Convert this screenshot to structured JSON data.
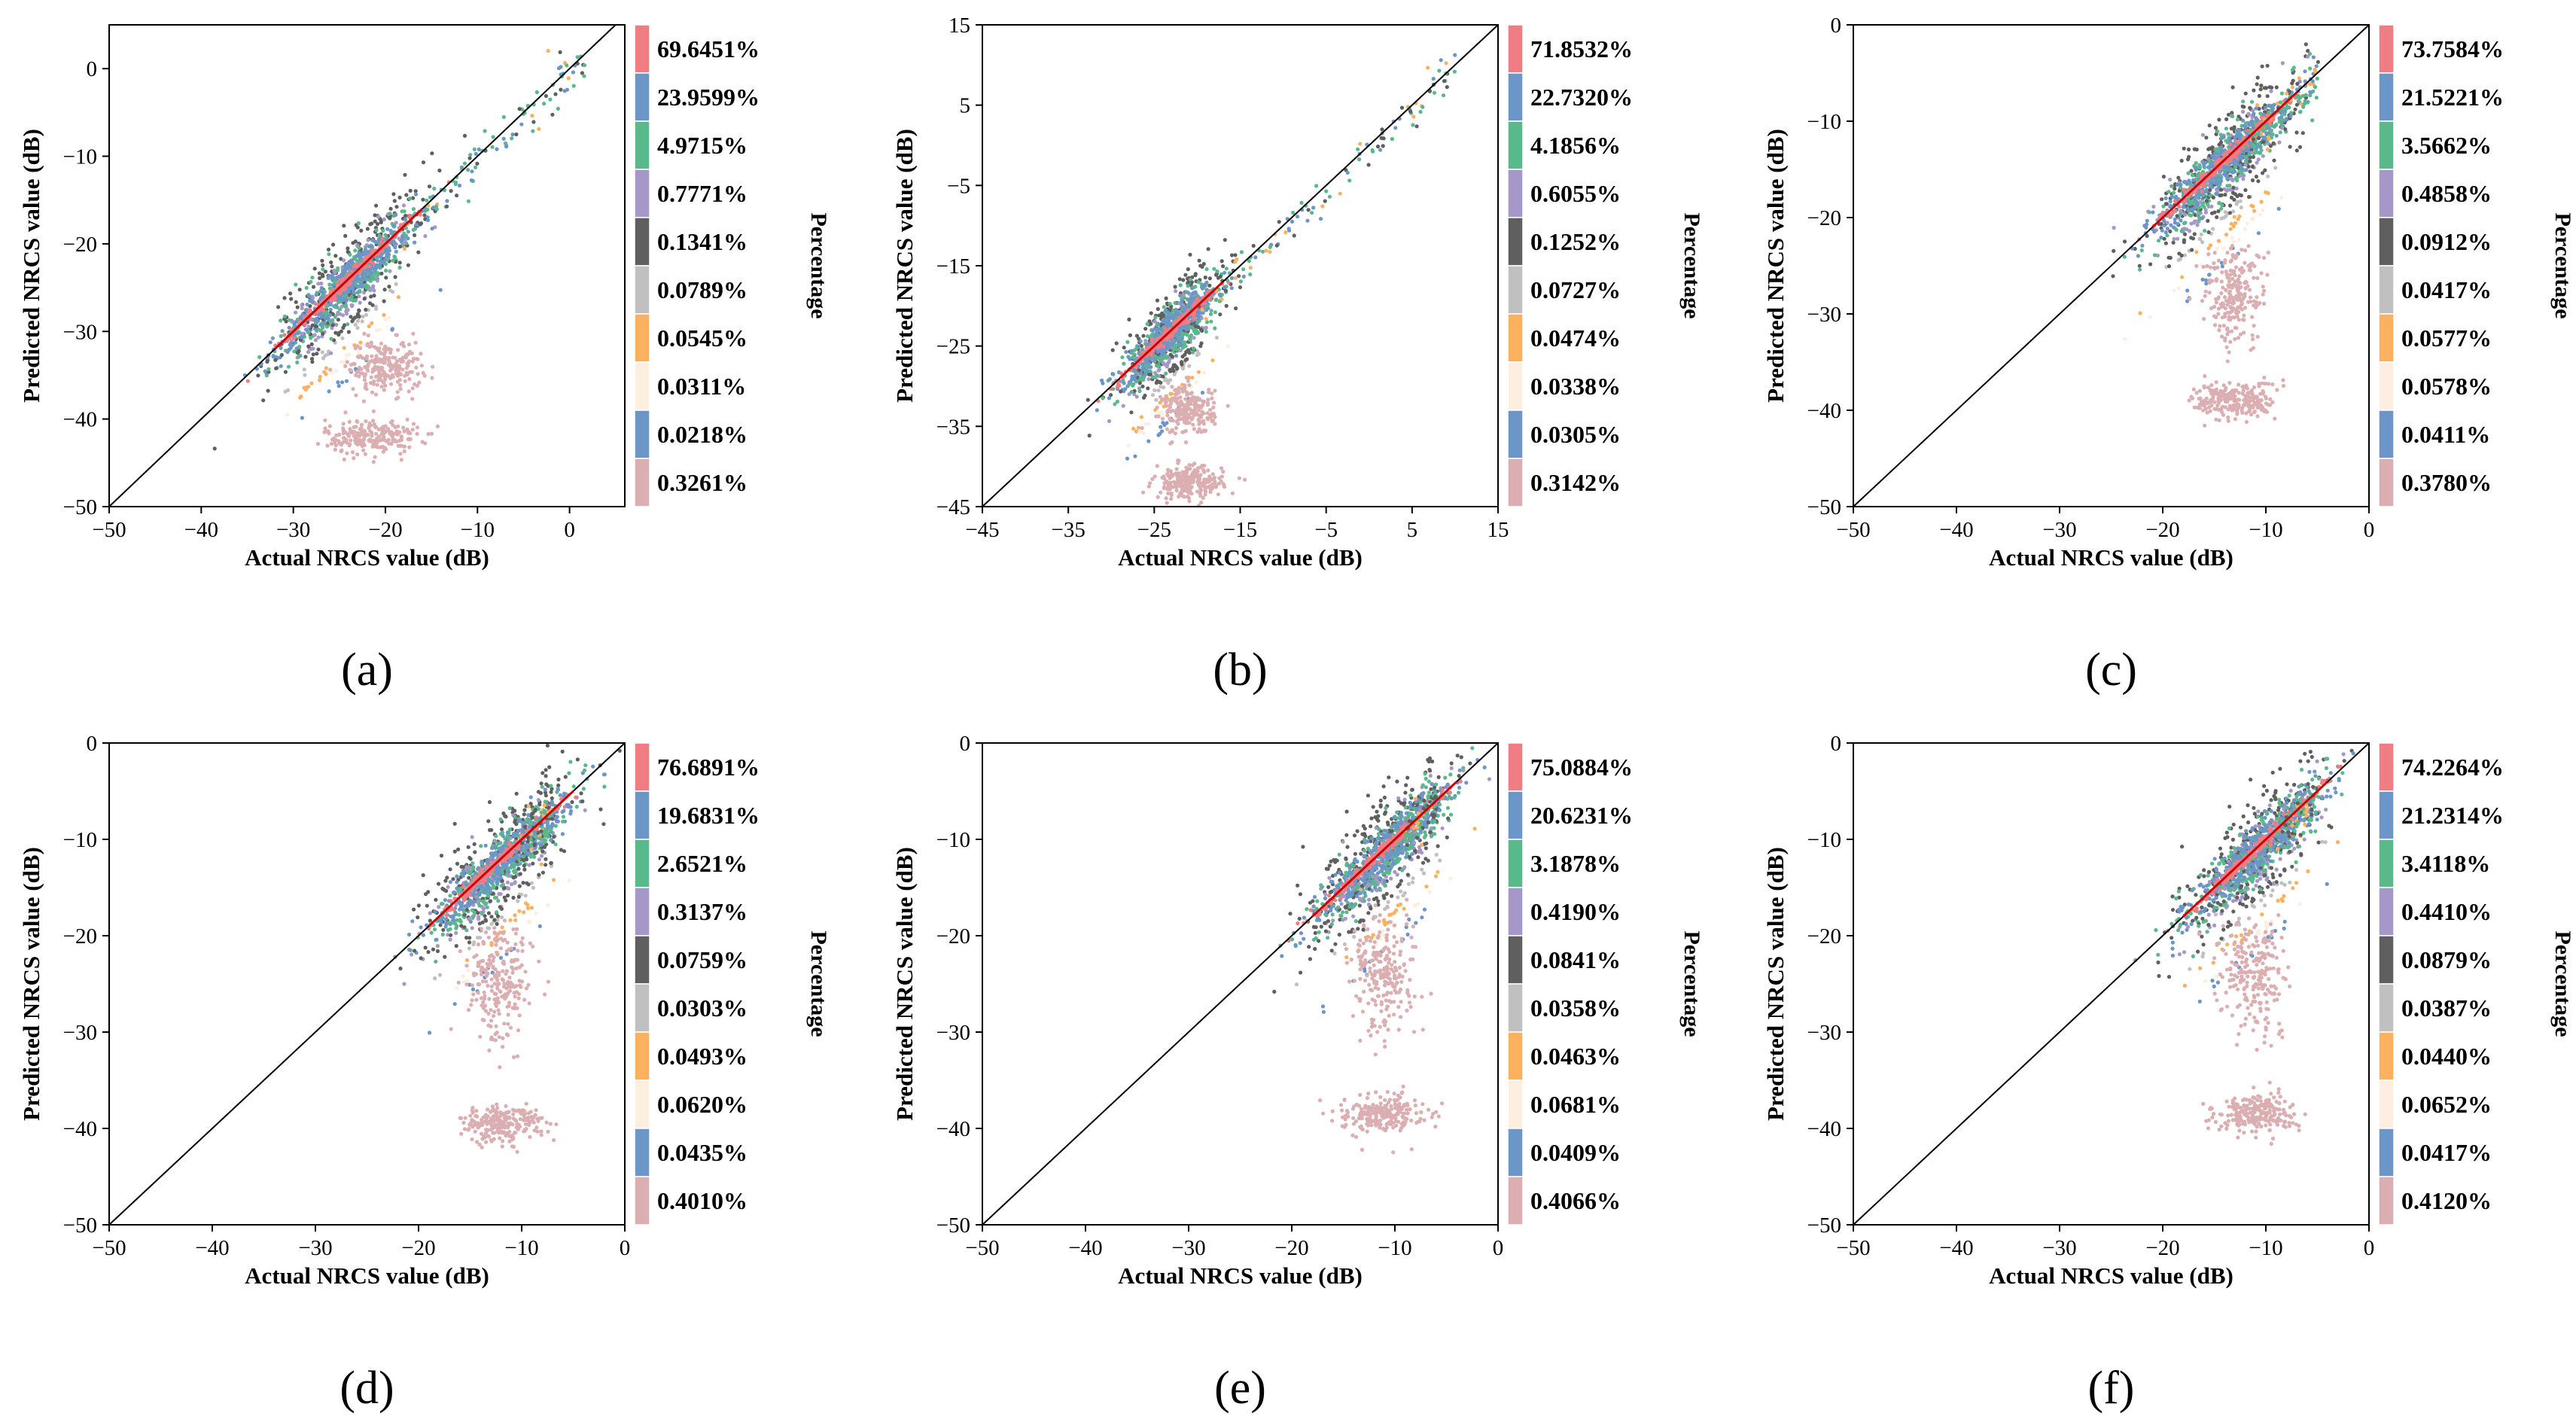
{
  "chart_data": [
    {
      "panel_label": "(a)",
      "type": "scatter",
      "xlabel": "Actual NRCS value (dB)",
      "ylabel": "Predicted NRCS value (dB)",
      "xlim": [
        -50,
        6
      ],
      "ylim": [
        -50,
        5
      ],
      "xticks": [
        -50,
        -40,
        -30,
        -20,
        -10,
        0
      ],
      "yticks": [
        -50,
        -40,
        -30,
        -20,
        -10,
        0
      ],
      "colorbar_label": "Percentage",
      "legend": [
        "69.6451%",
        "23.9599%",
        "4.9715%",
        "0.7771%",
        "0.1341%",
        "0.0789%",
        "0.0545%",
        "0.0311%",
        "0.0218%",
        "0.3261%"
      ],
      "band_offsets_db": [
        0,
        1.5,
        2.5,
        3.5,
        5,
        6,
        8,
        9,
        11
      ],
      "clusters": [
        {
          "x": -24,
          "y": -25,
          "sx": 4,
          "sy": 3.5
        },
        {
          "x": -20,
          "y": -34,
          "sx": 2,
          "sy": 1.5
        },
        {
          "x": -21.5,
          "y": -42,
          "sx": 2.5,
          "sy": 1
        }
      ],
      "extension": {
        "x0": -18,
        "x1": 2
      }
    },
    {
      "panel_label": "(b)",
      "type": "scatter",
      "xlabel": "Actual NRCS value (dB)",
      "ylabel": "Predicted NRCS value (dB)",
      "xlim": [
        -45,
        15
      ],
      "ylim": [
        -45,
        15
      ],
      "xticks": [
        -45,
        -35,
        -25,
        -15,
        -5,
        5,
        15
      ],
      "yticks": [
        -45,
        -35,
        -25,
        -15,
        -5,
        5,
        15
      ],
      "colorbar_label": "Percentage",
      "legend": [
        "71.8532%",
        "22.7320%",
        "4.1856%",
        "0.6055%",
        "0.1252%",
        "0.0727%",
        "0.0474%",
        "0.0338%",
        "0.0305%",
        "0.3142%"
      ],
      "band_offsets_db": [
        0,
        1.5,
        2.5,
        3.5,
        5,
        6,
        8,
        9,
        11
      ],
      "clusters": [
        {
          "x": -23,
          "y": -25,
          "sx": 3,
          "sy": 3
        },
        {
          "x": -21,
          "y": -33,
          "sx": 1.5,
          "sy": 1.5
        },
        {
          "x": -21,
          "y": -42,
          "sx": 2,
          "sy": 1
        }
      ],
      "extension": {
        "x0": -20,
        "x1": 10
      }
    },
    {
      "panel_label": "(c)",
      "type": "scatter",
      "xlabel": "Actual NRCS value (dB)",
      "ylabel": "Predicted NRCS value (dB)",
      "xlim": [
        -50,
        0
      ],
      "ylim": [
        -50,
        0
      ],
      "xticks": [
        -50,
        -40,
        -30,
        -20,
        -10,
        0
      ],
      "yticks": [
        -50,
        -40,
        -30,
        -20,
        -10,
        0
      ],
      "colorbar_label": "Percentage",
      "legend": [
        "73.7584%",
        "21.5221%",
        "3.5662%",
        "0.4858%",
        "0.0912%",
        "0.0417%",
        "0.0577%",
        "0.0578%",
        "0.0411%",
        "0.3780%"
      ],
      "band_offsets_db": [
        0,
        1.5,
        2.5,
        3.5,
        5,
        6,
        7.5,
        9,
        10.5
      ],
      "clusters": [
        {
          "x": -14,
          "y": -15,
          "sx": 3.5,
          "sy": 3
        },
        {
          "x": -13,
          "y": -28,
          "sx": 1.5,
          "sy": 2.5
        },
        {
          "x": -13,
          "y": -39,
          "sx": 2,
          "sy": 1
        }
      ],
      "extension": {
        "x0": -12,
        "x1": -5
      }
    },
    {
      "panel_label": "(d)",
      "type": "scatter",
      "xlabel": "Actual NRCS value (dB)",
      "ylabel": "Predicted NRCS value (dB)",
      "xlim": [
        -50,
        0
      ],
      "ylim": [
        -50,
        0
      ],
      "xticks": [
        -50,
        -40,
        -30,
        -20,
        -10,
        0
      ],
      "yticks": [
        -50,
        -40,
        -30,
        -20,
        -10,
        0
      ],
      "colorbar_label": "Percentage",
      "legend": [
        "76.6891%",
        "19.6831%",
        "2.6521%",
        "0.3137%",
        "0.0759%",
        "0.0303%",
        "0.0493%",
        "0.0620%",
        "0.0435%",
        "0.4010%"
      ],
      "band_offsets_db": [
        0,
        1.5,
        2.5,
        3.5,
        5,
        6,
        7.5,
        9,
        10.5
      ],
      "clusters": [
        {
          "x": -12,
          "y": -12,
          "sx": 3.5,
          "sy": 2.5
        },
        {
          "x": -12,
          "y": -25,
          "sx": 1.5,
          "sy": 3
        },
        {
          "x": -12,
          "y": -39.5,
          "sx": 2,
          "sy": 1
        }
      ],
      "extension": {
        "x0": -10,
        "x1": -7
      }
    },
    {
      "panel_label": "(e)",
      "type": "scatter",
      "xlabel": "Actual NRCS value (dB)",
      "ylabel": "Predicted NRCS value (dB)",
      "xlim": [
        -50,
        0
      ],
      "ylim": [
        -50,
        0
      ],
      "xticks": [
        -50,
        -40,
        -30,
        -20,
        -10,
        0
      ],
      "yticks": [
        -50,
        -40,
        -30,
        -20,
        -10,
        0
      ],
      "colorbar_label": "Percentage",
      "legend": [
        "75.0884%",
        "20.6231%",
        "3.1878%",
        "0.4190%",
        "0.0841%",
        "0.0358%",
        "0.0463%",
        "0.0681%",
        "0.0409%",
        "0.4066%"
      ],
      "band_offsets_db": [
        0,
        1.5,
        2.5,
        3.5,
        5,
        6,
        7.5,
        9,
        10.5
      ],
      "clusters": [
        {
          "x": -11,
          "y": -11,
          "sx": 3.5,
          "sy": 2.5
        },
        {
          "x": -11,
          "y": -24,
          "sx": 1.5,
          "sy": 3
        },
        {
          "x": -11,
          "y": -38.5,
          "sx": 2,
          "sy": 1
        }
      ],
      "extension": {
        "x0": -9,
        "x1": -6
      }
    },
    {
      "panel_label": "(f)",
      "type": "scatter",
      "xlabel": "Actual NRCS value (dB)",
      "ylabel": "Predicted NRCS value (dB)",
      "xlim": [
        -50,
        0
      ],
      "ylim": [
        -50,
        0
      ],
      "xticks": [
        -50,
        -40,
        -30,
        -20,
        -10,
        0
      ],
      "yticks": [
        -50,
        -40,
        -30,
        -20,
        -10,
        0
      ],
      "colorbar_label": "Percentage",
      "legend": [
        "74.2264%",
        "21.2314%",
        "3.4118%",
        "0.4410%",
        "0.0879%",
        "0.0387%",
        "0.0440%",
        "0.0652%",
        "0.0417%",
        "0.4120%"
      ],
      "band_offsets_db": [
        0,
        1.5,
        2.5,
        3.5,
        5,
        6,
        7.5,
        9,
        10.5
      ],
      "clusters": [
        {
          "x": -11,
          "y": -11,
          "sx": 3.5,
          "sy": 2.5
        },
        {
          "x": -11,
          "y": -24,
          "sx": 1.5,
          "sy": 3
        },
        {
          "x": -11,
          "y": -38.5,
          "sx": 2,
          "sy": 1
        }
      ],
      "extension": {
        "x0": -9,
        "x1": -5
      }
    }
  ],
  "palette": [
    "#ee7e84",
    "#6c95c8",
    "#5ab98a",
    "#a697c9",
    "#5f5f5f",
    "#c0c0c0",
    "#fbb160",
    "#fdeee0",
    "#6c95c8",
    "#dbaeb1"
  ],
  "diagonal_color": "#000000",
  "fit_line_color": "#cc0000"
}
